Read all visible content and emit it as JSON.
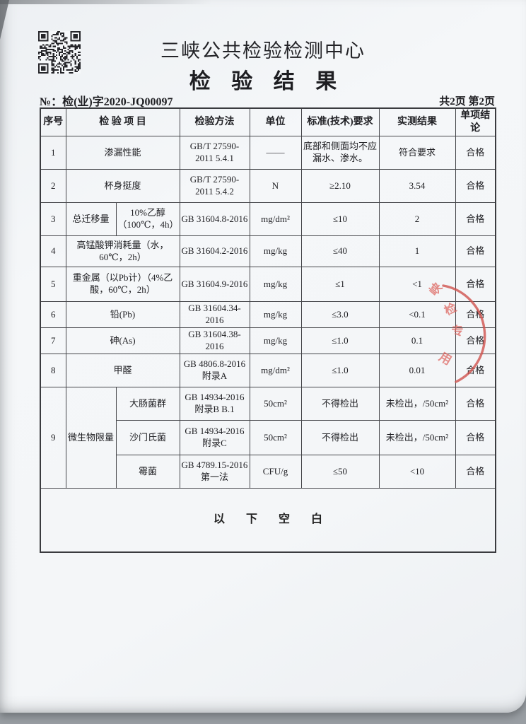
{
  "colors": {
    "paper": "#f4f6f8",
    "text": "#202024",
    "table_border": "#45464a",
    "stamp_red": "#d0524e"
  },
  "icons": {
    "qr": "qr-code"
  },
  "header": {
    "org_name": "三峡公共检验检测中心",
    "doc_title": "检 验 结 果",
    "report_no_label": "№：",
    "report_no": "检(业)字2020-JQ00097",
    "page_info": "共2页 第2页"
  },
  "table": {
    "columns": [
      "序号",
      "检 验 项 目",
      "检验方法",
      "单位",
      "标准(技术)要求",
      "实测结果",
      "单项结论"
    ],
    "rows": [
      {
        "no": "1",
        "item": "渗漏性能",
        "method": "GB/T 27590-2011 5.4.1",
        "unit": "——",
        "requirement": "底部和侧面均不应漏水、渗水。",
        "result": "符合要求",
        "conclusion": "合格"
      },
      {
        "no": "2",
        "item": "杯身挺度",
        "method": "GB/T 27590-2011 5.4.2",
        "unit": "N",
        "requirement": "≥2.10",
        "result": "3.54",
        "conclusion": "合格"
      },
      {
        "no": "3",
        "item": "总迁移量",
        "item_condition": "10%乙醇（100℃，4h）",
        "method": "GB 31604.8-2016",
        "unit": "mg/dm²",
        "requirement": "≤10",
        "result": "2",
        "conclusion": "合格"
      },
      {
        "no": "4",
        "item": "高锰酸钾消耗量（水，60℃，2h）",
        "method": "GB 31604.2-2016",
        "unit": "mg/kg",
        "requirement": "≤40",
        "result": "1",
        "conclusion": "合格"
      },
      {
        "no": "5",
        "item": "重金属（以Pb计）（4%乙酸，60℃，2h）",
        "method": "GB 31604.9-2016",
        "unit": "mg/kg",
        "requirement": "≤1",
        "result": "<1",
        "conclusion": "合格"
      },
      {
        "no": "6",
        "item": "铅(Pb)",
        "method": "GB 31604.34-2016",
        "unit": "mg/kg",
        "requirement": "≤3.0",
        "result": "<0.1",
        "conclusion": "合格"
      },
      {
        "no": "7",
        "item": "砷(As)",
        "method": "GB 31604.38-2016",
        "unit": "mg/kg",
        "requirement": "≤1.0",
        "result": "0.1",
        "conclusion": "合格"
      },
      {
        "no": "8",
        "item": "甲醛",
        "method": "GB 4806.8-2016 附录A",
        "unit": "mg/dm²",
        "requirement": "≤1.0",
        "result": "0.01",
        "conclusion": "合格"
      },
      {
        "no": "9",
        "item": "微生物限量",
        "sub": [
          {
            "item": "大肠菌群",
            "method": "GB 14934-2016 附录B B.1",
            "unit": "50cm²",
            "requirement": "不得检出",
            "result": "未检出，/50cm²",
            "conclusion": "合格"
          },
          {
            "item": "沙门氏菌",
            "method": "GB 14934-2016 附录C",
            "unit": "50cm²",
            "requirement": "不得检出",
            "result": "未检出，/50cm²",
            "conclusion": "合格"
          },
          {
            "item": "霉菌",
            "method": "GB 4789.15-2016 第一法",
            "unit": "CFU/g",
            "requirement": "≤50",
            "result": "<10",
            "conclusion": "合格"
          }
        ]
      }
    ],
    "blank_note": "以 下 空 白"
  },
  "stamp": {
    "chars": [
      "峡",
      "检",
      "专",
      "用"
    ]
  }
}
